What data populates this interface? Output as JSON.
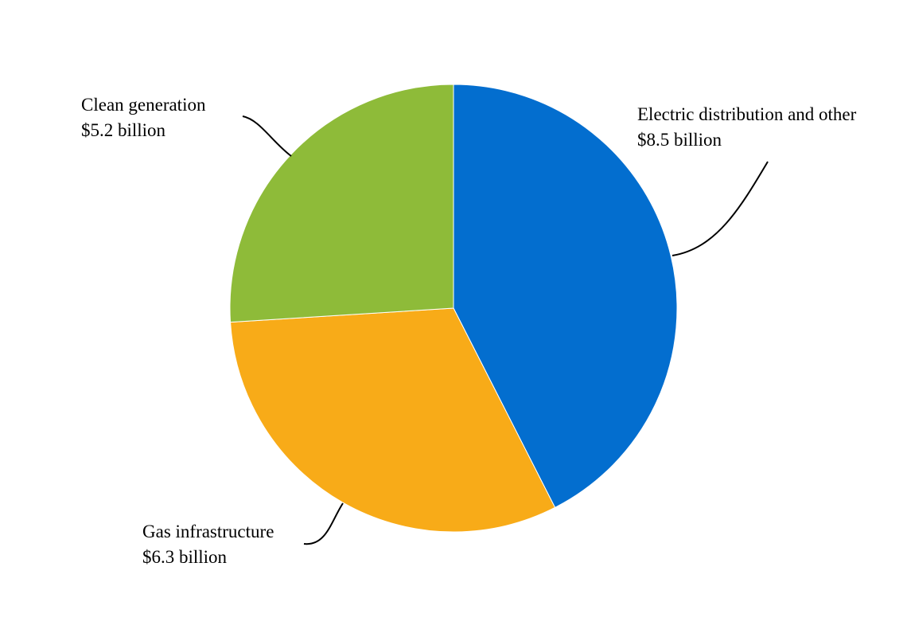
{
  "chart_data": {
    "type": "pie",
    "unit": "$ billion",
    "start": "top",
    "direction": "clockwise",
    "slices": [
      {
        "label": "Electric distribution and other",
        "value_text": "$8.5 billion",
        "value": 8.5,
        "color": "#036ECF"
      },
      {
        "label": "Gas infrastructure",
        "value_text": "$6.3 billion",
        "value": 6.3,
        "color": "#F8AB18"
      },
      {
        "label": "Clean generation",
        "value_text": "$5.2 billion",
        "value": 5.2,
        "color": "#8EBB39"
      }
    ]
  }
}
